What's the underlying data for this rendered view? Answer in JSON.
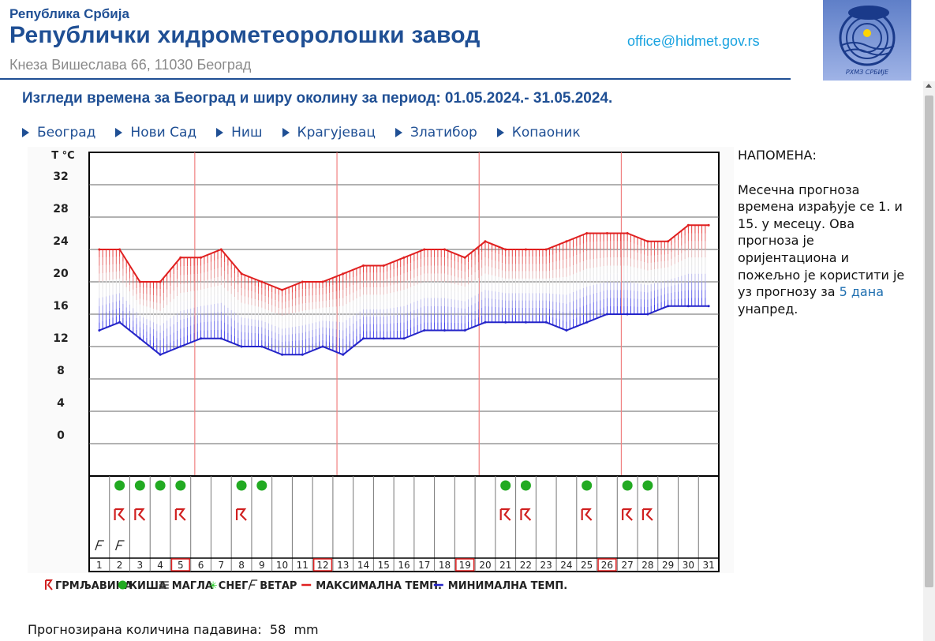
{
  "header": {
    "republic": "Република Србија",
    "title": "Републички хидрометеоролошки завод",
    "address": "Кнеза Вишеслава 66, 11030  Београд",
    "email": "office@hidmet.gov.rs",
    "logo_text": "РХМЗ СРБИЈЕ"
  },
  "page": {
    "heading": "Изгледи времена за Београд и ширу околину за период: 01.05.2024.- 31.05.2024."
  },
  "cities": [
    {
      "label": "Београд"
    },
    {
      "label": "Нови Сад"
    },
    {
      "label": "Ниш"
    },
    {
      "label": "Крагујевац"
    },
    {
      "label": "Златибор"
    },
    {
      "label": "Копаоник"
    }
  ],
  "note": {
    "title": "НАПОМЕНА:",
    "text_before": "Месечна прогноза времена израђује се 1. и 15. у месецу. Ова прогноза је оријентациона и пожељно је користити је уз прогнозу за ",
    "link": "5 дана",
    "text_after": " унапред."
  },
  "precip": {
    "label": "Прогнозирана количина падавина:",
    "value": "58",
    "unit": "mm"
  },
  "colors": {
    "brand": "#1f4f94",
    "max_line": "#e02020",
    "min_line": "#2424c8",
    "rain": "#22aa22",
    "storm": "#d02020",
    "fog": "#444444",
    "snow": "#22cc22",
    "highlight_day": "#e02020"
  },
  "chart_data": {
    "type": "line",
    "ylabel": "T °C",
    "ylim": [
      -4,
      36
    ],
    "yticks": [
      0,
      4,
      8,
      12,
      16,
      20,
      24,
      28,
      32
    ],
    "x": [
      1,
      2,
      3,
      4,
      5,
      6,
      7,
      8,
      9,
      10,
      11,
      12,
      13,
      14,
      15,
      16,
      17,
      18,
      19,
      20,
      21,
      22,
      23,
      24,
      25,
      26,
      27,
      28,
      29,
      30,
      31
    ],
    "series": [
      {
        "name": "МАКСИМАЛНА ТЕМП.",
        "values": [
          24,
          24,
          20,
          20,
          23,
          23,
          24,
          21,
          20,
          19,
          20,
          20,
          21,
          22,
          22,
          23,
          24,
          24,
          23,
          25,
          24,
          24,
          24,
          25,
          26,
          26,
          26,
          25,
          25,
          27,
          27
        ]
      },
      {
        "name": "МИНИМАЛНА ТЕМП.",
        "values": [
          14,
          15,
          13,
          11,
          12,
          13,
          13,
          12,
          12,
          11,
          11,
          12,
          11,
          13,
          13,
          13,
          14,
          14,
          14,
          15,
          15,
          15,
          15,
          14,
          15,
          16,
          16,
          16,
          17,
          17,
          17
        ]
      }
    ],
    "highlighted_days": [
      5,
      12,
      19,
      26
    ],
    "week_lines_after_days": [
      5,
      12,
      19,
      26
    ],
    "rain_days": [
      2,
      3,
      4,
      5,
      8,
      9,
      21,
      22,
      25,
      27,
      28
    ],
    "storm_days": [
      2,
      3,
      5,
      8,
      21,
      22,
      25,
      27,
      28
    ],
    "fog_days": [],
    "snow_days": [],
    "wind_days": [
      1,
      2
    ],
    "legend": {
      "storm": "ГРМЉАВИНА",
      "rain": "КИША",
      "fog": "МАГЛА",
      "snow": "СНЕГ",
      "wind": "ВЕТАР",
      "max": "МАКСИМАЛНА ТЕМП.",
      "min": "МИНИМАЛНА ТЕМП."
    }
  }
}
